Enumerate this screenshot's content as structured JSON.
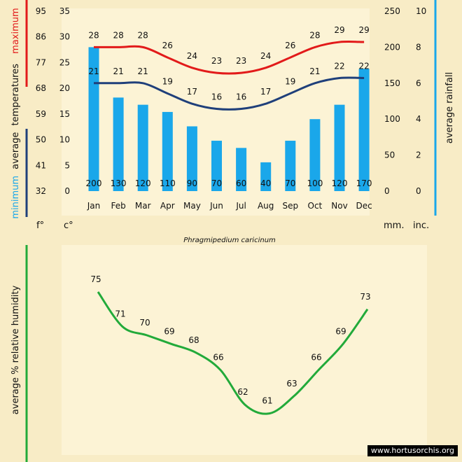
{
  "colors": {
    "background": "#f8ecc6",
    "panel": "#fcf3d5",
    "maximum": "#e21a1a",
    "minimum": "#1f3f7a",
    "rainfall": "#1aa7ea",
    "humidity": "#22aa3a"
  },
  "units": {
    "fahrenheit": "f°",
    "celsius": "c°",
    "mm": "mm.",
    "inches": "inc."
  },
  "labels": {
    "temperature_axis": "temperatures",
    "average_word": "average",
    "maximum_word": "maximum",
    "minimum_word": "minimum",
    "rainfall_axis": "average rainfall",
    "humidity_axis": "average %  relative humidity"
  },
  "species": "Phragmipedium caricinum",
  "credit": "www.hortusorchis.org",
  "chart_data": [
    {
      "type": "bar+line",
      "categories": [
        "Jan",
        "Feb",
        "Mar",
        "Apr",
        "May",
        "Jun",
        "Jul",
        "Aug",
        "Sep",
        "Oct",
        "Nov",
        "Dec"
      ],
      "series": [
        {
          "name": "maximum",
          "kind": "line",
          "axis": "celsius",
          "values": [
            28,
            28,
            28,
            26,
            24,
            23,
            23,
            24,
            26,
            28,
            29,
            29
          ]
        },
        {
          "name": "minimum",
          "kind": "line",
          "axis": "celsius",
          "values": [
            21,
            21,
            21,
            19,
            17,
            16,
            16,
            17,
            19,
            21,
            22,
            22
          ]
        },
        {
          "name": "average rainfall",
          "kind": "bar",
          "axis": "mm",
          "values": [
            200,
            130,
            120,
            110,
            90,
            70,
            60,
            40,
            70,
            100,
            120,
            170
          ]
        }
      ],
      "y_celsius": {
        "ylim": [
          0,
          35
        ],
        "ticks": [
          0,
          5,
          10,
          15,
          20,
          25,
          30,
          35
        ]
      },
      "y_fahrenheit": {
        "ticks": [
          32,
          41,
          50,
          59,
          68,
          77,
          86,
          95
        ]
      },
      "y_mm": {
        "ylim": [
          0,
          250
        ],
        "ticks": [
          0,
          50,
          100,
          150,
          200,
          250
        ]
      },
      "y_inches": {
        "ticks": [
          0,
          2,
          4,
          6,
          8,
          10
        ]
      },
      "grid": false
    },
    {
      "type": "line",
      "categories": [
        "Jan",
        "Feb",
        "Mar",
        "Apr",
        "May",
        "Jun",
        "Jul",
        "Aug",
        "Sep",
        "Oct",
        "Nov",
        "Dec"
      ],
      "series": [
        {
          "name": "average %  relative humidity",
          "values": [
            75,
            71,
            70,
            69,
            68,
            66,
            62,
            61,
            63,
            66,
            69,
            73
          ]
        }
      ],
      "grid": false
    }
  ]
}
